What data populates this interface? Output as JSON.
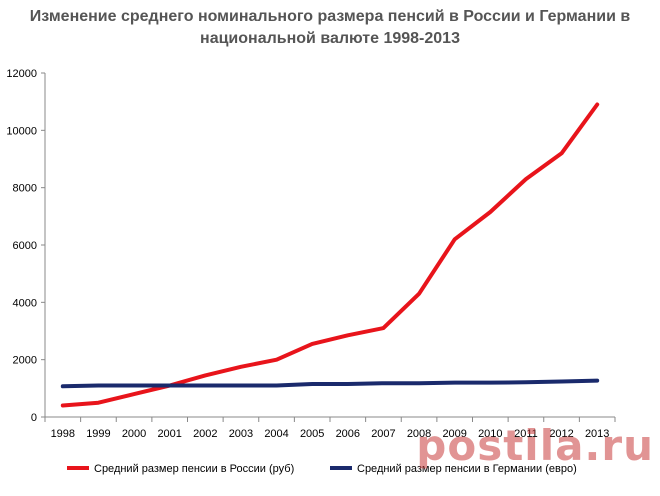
{
  "title": {
    "line1": "Изменение среднего номинального размера пенсий в России и Германии в",
    "line2": "национальной валюте 1998-2013"
  },
  "watermark": "postila.ru",
  "chart_data": {
    "type": "line",
    "x": [
      "1998",
      "1999",
      "2000",
      "2001",
      "2002",
      "2003",
      "2004",
      "2005",
      "2006",
      "2007",
      "2008",
      "2009",
      "2010",
      "2011",
      "2012",
      "2013"
    ],
    "ylim": [
      0,
      12000
    ],
    "yticks": [
      0,
      2000,
      4000,
      6000,
      8000,
      10000,
      12000
    ],
    "grid": false,
    "legend_position": "bottom",
    "series": [
      {
        "name": "Средний размер пенсии в России (руб)",
        "color": "#e8141b",
        "values": [
          400,
          500,
          800,
          1100,
          1450,
          1750,
          2000,
          2550,
          2850,
          3100,
          4300,
          6200,
          7150,
          8300,
          9200,
          10900
        ]
      },
      {
        "name": "Средний размер пенсии в Германии (евро)",
        "color": "#1a2a6c",
        "values": [
          1070,
          1100,
          1100,
          1100,
          1100,
          1100,
          1100,
          1150,
          1150,
          1180,
          1180,
          1200,
          1200,
          1210,
          1240,
          1270
        ]
      }
    ]
  }
}
